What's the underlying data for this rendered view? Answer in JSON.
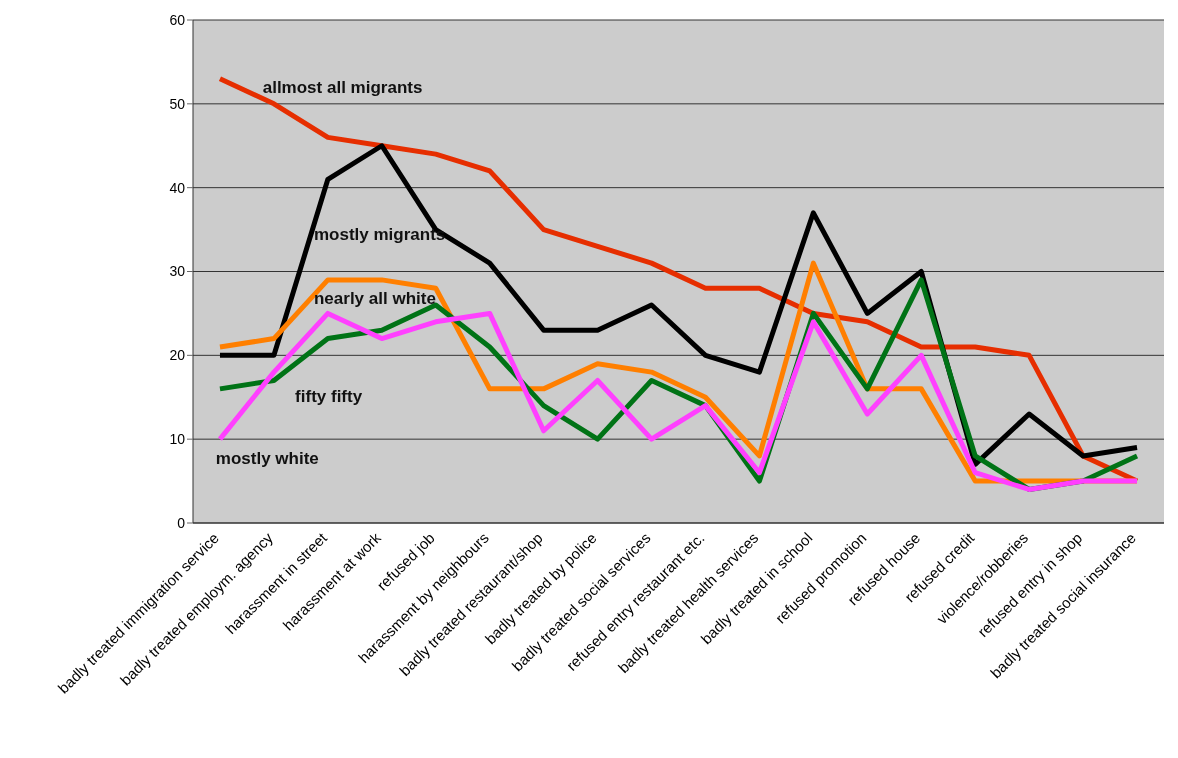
{
  "chart_data": {
    "type": "line",
    "categories": [
      "badly treated immigration service",
      "badly treated employm. agency",
      "harassment in street",
      "harassment at work",
      "refused job",
      "harassment by neighbours",
      "badly treated restaurant/shop",
      "badly treated by police",
      "badly treated social services",
      "refused entry restaurant etc.",
      "badly treated health services",
      "badly treated in school",
      "refused promotion",
      "refused house",
      "refused credit",
      "violence/robberies",
      "refused entry in shop",
      "badly treated social insurance"
    ],
    "series": [
      {
        "name": "allmost all migrants",
        "color": "#e62e00",
        "values": [
          53,
          50,
          46,
          45,
          44,
          42,
          35,
          33,
          31,
          28,
          28,
          25,
          24,
          21,
          21,
          20,
          8,
          5
        ]
      },
      {
        "name": "mostly migrants",
        "color": "#000000",
        "values": [
          20,
          20,
          41,
          45,
          35,
          31,
          23,
          23,
          26,
          20,
          18,
          37,
          25,
          30,
          7,
          13,
          8,
          9
        ]
      },
      {
        "name": "nearly all white",
        "color": "#ff7f00",
        "values": [
          21,
          22,
          29,
          29,
          28,
          16,
          16,
          19,
          18,
          15,
          8,
          31,
          16,
          16,
          5,
          5,
          5,
          5
        ]
      },
      {
        "name": "fifty fifty",
        "color": "#007316",
        "values": [
          16,
          17,
          22,
          23,
          26,
          21,
          14,
          10,
          17,
          14,
          5,
          25,
          16,
          29,
          8,
          4,
          5,
          8
        ]
      },
      {
        "name": "mostly white",
        "color": "#ff40ff",
        "values": [
          10,
          18,
          25,
          22,
          24,
          25,
          11,
          17,
          10,
          14,
          6,
          24,
          13,
          20,
          6,
          4,
          5,
          5
        ]
      }
    ],
    "ylim": [
      0,
      60
    ],
    "yticks": [
      0,
      10,
      20,
      30,
      40,
      50,
      60
    ],
    "grid": "y",
    "legend": false,
    "marker": "none",
    "line_style": "solid"
  }
}
